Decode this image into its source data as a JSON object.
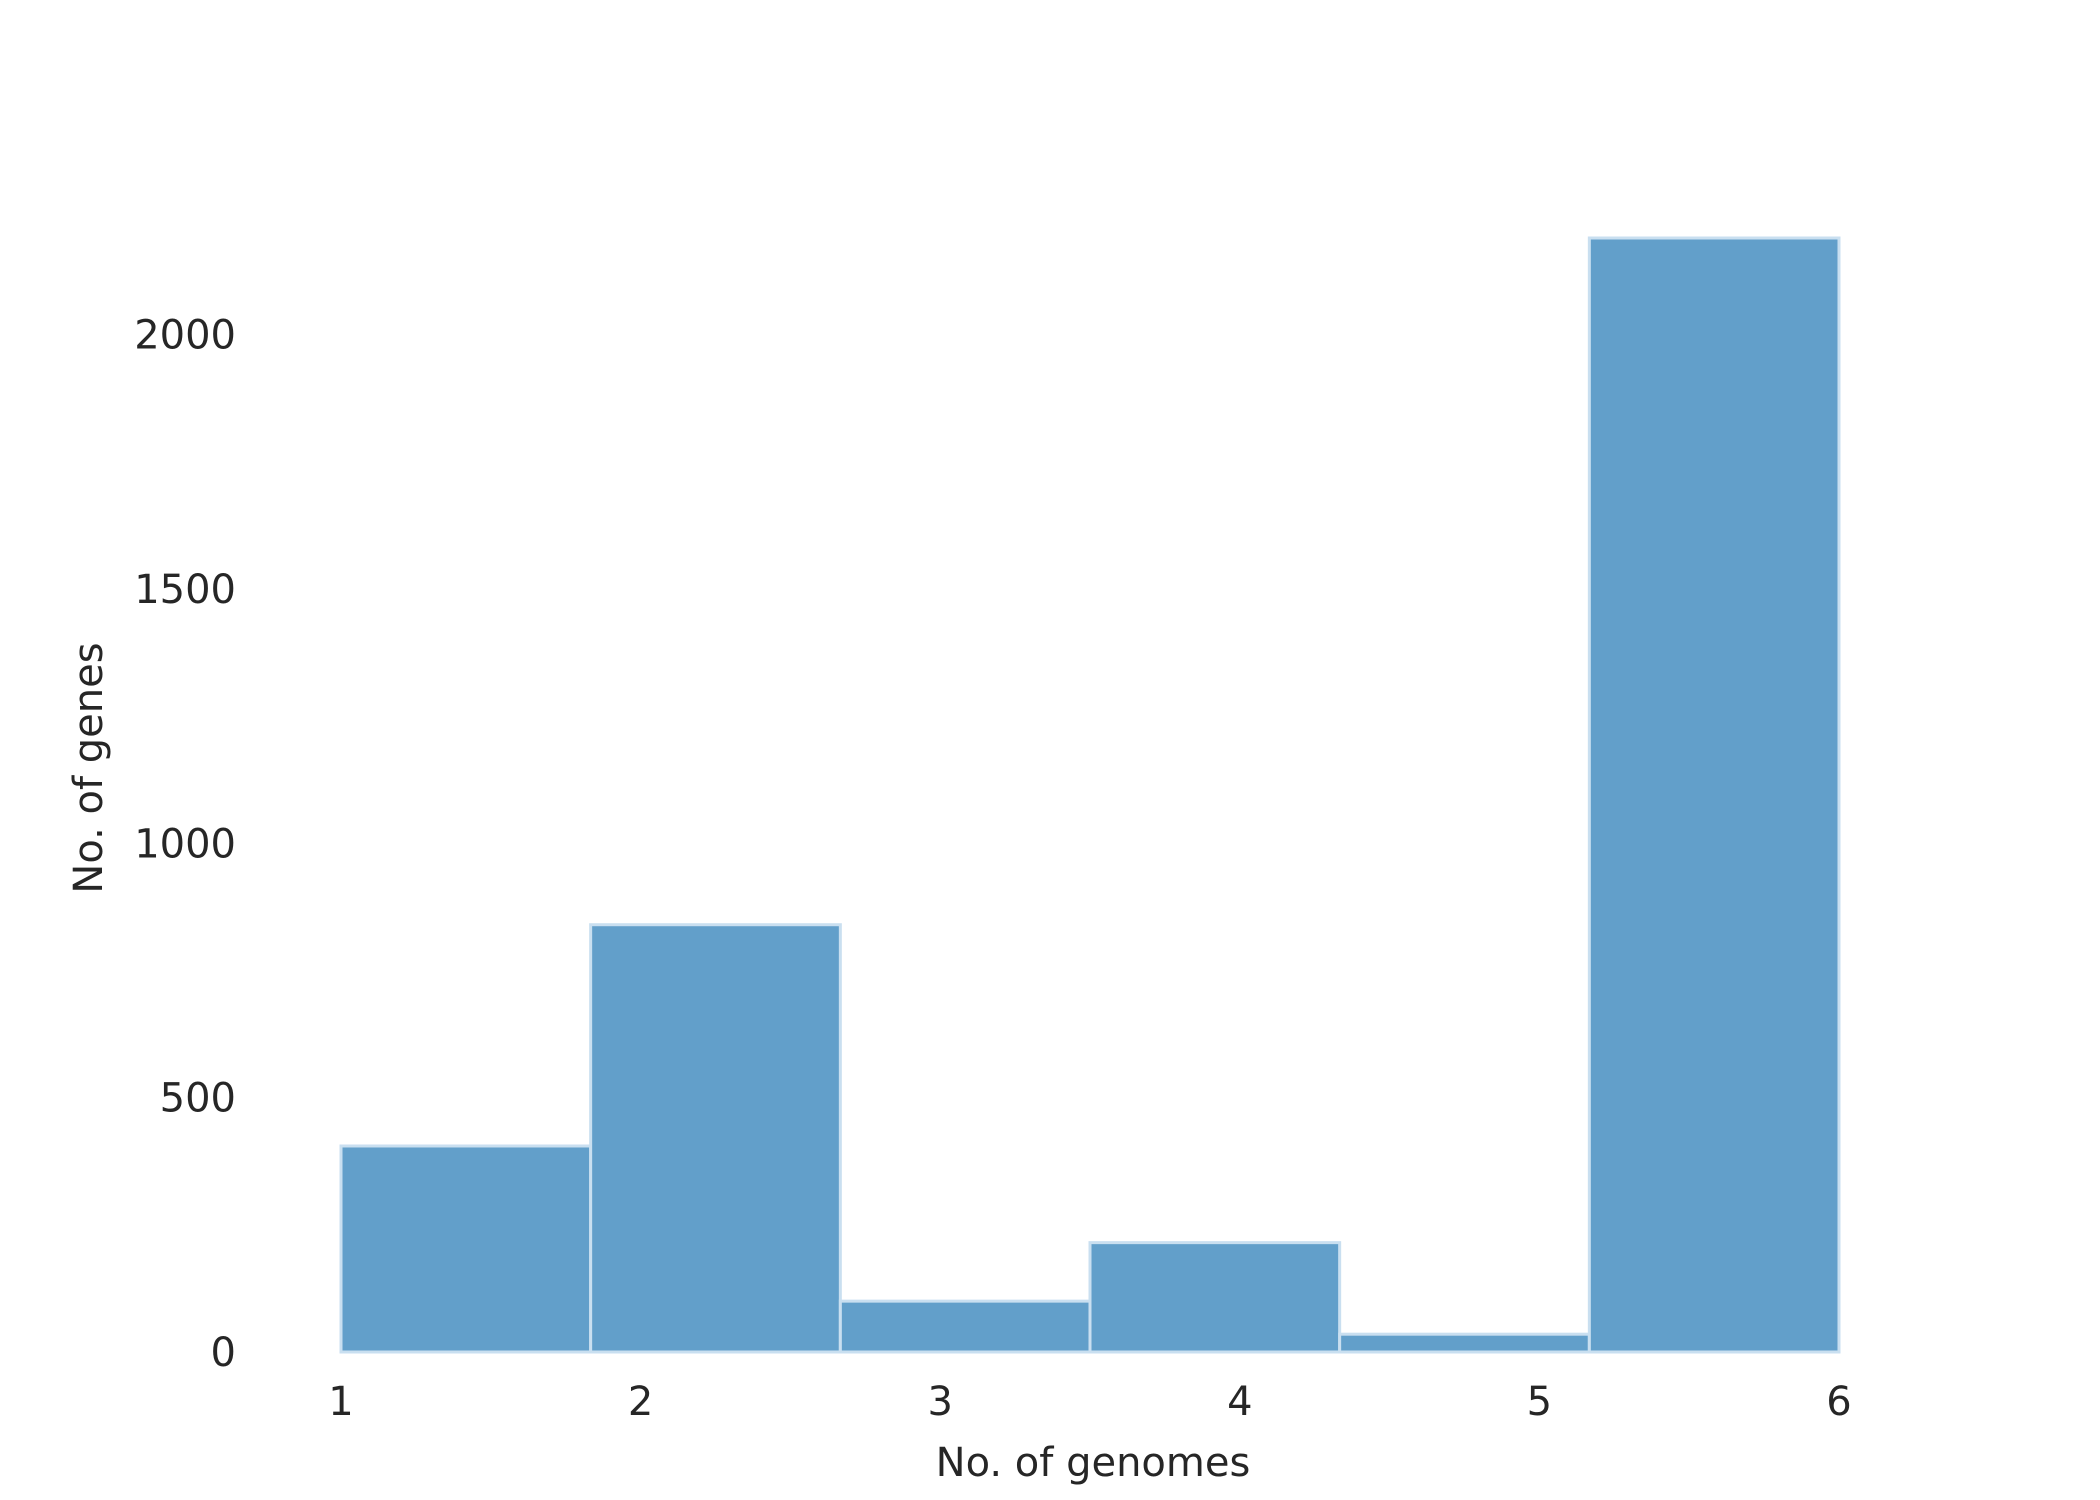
{
  "chart_data": {
    "type": "bar",
    "title": "",
    "xlabel": "No. of genomes",
    "ylabel": "No. of genes",
    "bin_edges": [
      1,
      1.8333,
      2.6667,
      3.5,
      4.3333,
      5.1667,
      6
    ],
    "values": [
      405,
      840,
      100,
      215,
      35,
      2190
    ],
    "xlim": [
      1,
      6
    ],
    "ylim": [
      0,
      2190
    ],
    "xticks": [
      1,
      2,
      3,
      4,
      5,
      6
    ],
    "xtick_labels": [
      "1",
      "2",
      "3",
      "4",
      "5",
      "6"
    ],
    "yticks": [
      0,
      500,
      1000,
      1500,
      2000
    ],
    "ytick_labels": [
      "0",
      "500",
      "1000",
      "1500",
      "2000"
    ],
    "grid": false,
    "bar_color": "#629fca",
    "edge_color": "#c9dff0"
  }
}
